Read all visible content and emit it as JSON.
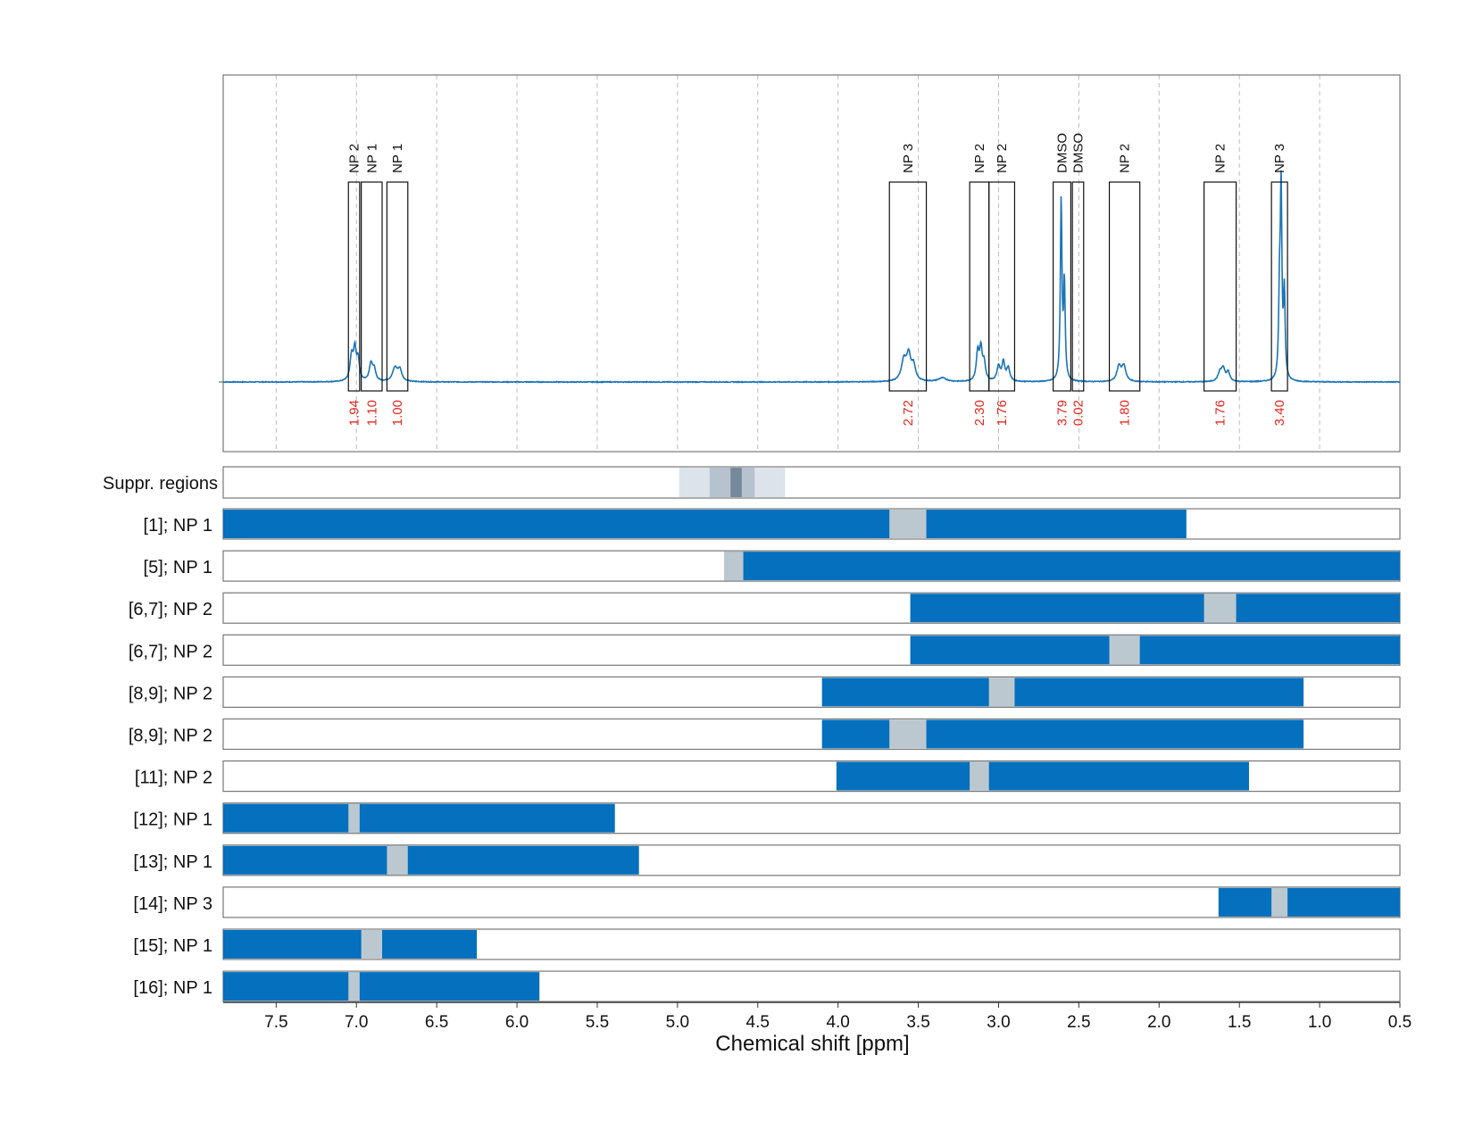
{
  "chart_data": {
    "type": "nmr-spectrum",
    "xlabel": "Chemical shift [ppm]",
    "xlim": [
      7.83,
      0.5
    ],
    "x_reversed": true,
    "ticks": [
      7.5,
      7.0,
      6.5,
      6.0,
      5.5,
      5.0,
      4.5,
      4.0,
      3.5,
      3.0,
      2.5,
      2.0,
      1.5,
      1.0,
      0.5
    ],
    "tick_labels": [
      "7.5",
      "7.0",
      "6.5",
      "6.0",
      "5.5",
      "5.0",
      "4.5",
      "4.0",
      "3.5",
      "3.0",
      "2.5",
      "2.0",
      "1.5",
      "1.0",
      "0.5"
    ],
    "grid": "dashed vertical",
    "spectrum": {
      "color": "#1a74b8",
      "baseline": 0.0,
      "peaks": [
        {
          "ppm": 7.03,
          "height": 0.13,
          "width": 0.012
        },
        {
          "ppm": 7.01,
          "height": 0.15,
          "width": 0.01
        },
        {
          "ppm": 6.99,
          "height": 0.11,
          "width": 0.01
        },
        {
          "ppm": 6.91,
          "height": 0.09,
          "width": 0.012
        },
        {
          "ppm": 6.89,
          "height": 0.06,
          "width": 0.012
        },
        {
          "ppm": 6.76,
          "height": 0.07,
          "width": 0.018
        },
        {
          "ppm": 6.73,
          "height": 0.06,
          "width": 0.015
        },
        {
          "ppm": 3.59,
          "height": 0.11,
          "width": 0.018
        },
        {
          "ppm": 3.56,
          "height": 0.13,
          "width": 0.015
        },
        {
          "ppm": 3.53,
          "height": 0.08,
          "width": 0.015
        },
        {
          "ppm": 3.35,
          "height": 0.02,
          "width": 0.03
        },
        {
          "ppm": 3.13,
          "height": 0.15,
          "width": 0.01
        },
        {
          "ppm": 3.11,
          "height": 0.16,
          "width": 0.01
        },
        {
          "ppm": 3.09,
          "height": 0.09,
          "width": 0.01
        },
        {
          "ppm": 3.0,
          "height": 0.08,
          "width": 0.012
        },
        {
          "ppm": 2.97,
          "height": 0.1,
          "width": 0.01
        },
        {
          "ppm": 2.94,
          "height": 0.07,
          "width": 0.012
        },
        {
          "ppm": 2.61,
          "height": 0.95,
          "width": 0.006
        },
        {
          "ppm": 2.59,
          "height": 0.5,
          "width": 0.006
        },
        {
          "ppm": 2.25,
          "height": 0.08,
          "width": 0.015
        },
        {
          "ppm": 2.22,
          "height": 0.08,
          "width": 0.015
        },
        {
          "ppm": 1.62,
          "height": 0.05,
          "width": 0.015
        },
        {
          "ppm": 1.6,
          "height": 0.06,
          "width": 0.012
        },
        {
          "ppm": 1.57,
          "height": 0.05,
          "width": 0.012
        },
        {
          "ppm": 1.25,
          "height": 0.4,
          "width": 0.006
        },
        {
          "ppm": 1.24,
          "height": 0.98,
          "width": 0.006
        },
        {
          "ppm": 1.22,
          "height": 0.45,
          "width": 0.006
        }
      ]
    },
    "peak_regions": [
      {
        "label": "NP 2",
        "from": 7.05,
        "to": 6.98,
        "integral": "1.94"
      },
      {
        "label": "NP 1",
        "from": 6.97,
        "to": 6.84,
        "integral": "1.10"
      },
      {
        "label": "NP 1",
        "from": 6.81,
        "to": 6.68,
        "integral": "1.00"
      },
      {
        "label": "NP 3",
        "from": 3.68,
        "to": 3.45,
        "integral": "2.72"
      },
      {
        "label": "NP 2",
        "from": 3.18,
        "to": 3.06,
        "integral": "2.30"
      },
      {
        "label": "NP 2",
        "from": 3.06,
        "to": 2.9,
        "integral": "1.76"
      },
      {
        "label": "DMSO",
        "from": 2.66,
        "to": 2.55,
        "integral": "3.79"
      },
      {
        "label": "DMSO",
        "from": 2.54,
        "to": 2.47,
        "integral": "0.02"
      },
      {
        "label": "NP 2",
        "from": 2.31,
        "to": 2.12,
        "integral": "1.80"
      },
      {
        "label": "NP 2",
        "from": 1.72,
        "to": 1.52,
        "integral": "1.76"
      },
      {
        "label": "NP 3",
        "from": 1.3,
        "to": 1.2,
        "integral": "3.40"
      }
    ],
    "suppression": {
      "label": "Suppr. regions",
      "bands": [
        {
          "from": 4.99,
          "to": 4.33,
          "shade": "#dce3ea"
        },
        {
          "from": 4.8,
          "to": 4.52,
          "shade": "#b6c2cd"
        },
        {
          "from": 4.67,
          "to": 4.6,
          "shade": "#75899b"
        }
      ]
    },
    "bar_color": "#0570be",
    "highlight_color": "#bcc8d0",
    "rows": [
      {
        "label": "[1]; NP 1",
        "from": 7.83,
        "to": 1.83,
        "hl_from": 3.68,
        "hl_to": 3.45
      },
      {
        "label": "[5]; NP 1",
        "from": 4.71,
        "to": 0.5,
        "hl_from": 4.71,
        "hl_to": 4.59
      },
      {
        "label": "[6,7]; NP 2",
        "from": 3.55,
        "to": 0.5,
        "hl_from": 1.72,
        "hl_to": 1.52
      },
      {
        "label": "[6,7]; NP 2",
        "from": 3.55,
        "to": 0.5,
        "hl_from": 2.31,
        "hl_to": 2.12
      },
      {
        "label": "[8,9]; NP 2",
        "from": 4.1,
        "to": 1.1,
        "hl_from": 3.06,
        "hl_to": 2.9
      },
      {
        "label": "[8,9]; NP 2",
        "from": 4.1,
        "to": 1.1,
        "hl_from": 3.68,
        "hl_to": 3.45
      },
      {
        "label": "[11]; NP 2",
        "from": 4.01,
        "to": 1.44,
        "hl_from": 3.18,
        "hl_to": 3.06
      },
      {
        "label": "[12]; NP 1",
        "from": 7.83,
        "to": 5.39,
        "hl_from": 7.05,
        "hl_to": 6.98
      },
      {
        "label": "[13]; NP 1",
        "from": 7.83,
        "to": 5.24,
        "hl_from": 6.81,
        "hl_to": 6.68
      },
      {
        "label": "[14]; NP 3",
        "from": 1.63,
        "to": 0.5,
        "hl_from": 1.3,
        "hl_to": 1.2
      },
      {
        "label": "[15]; NP 1",
        "from": 7.83,
        "to": 6.25,
        "hl_from": 6.97,
        "hl_to": 6.84
      },
      {
        "label": "[16]; NP 1",
        "from": 7.83,
        "to": 5.86,
        "hl_from": 7.05,
        "hl_to": 6.98
      }
    ]
  }
}
